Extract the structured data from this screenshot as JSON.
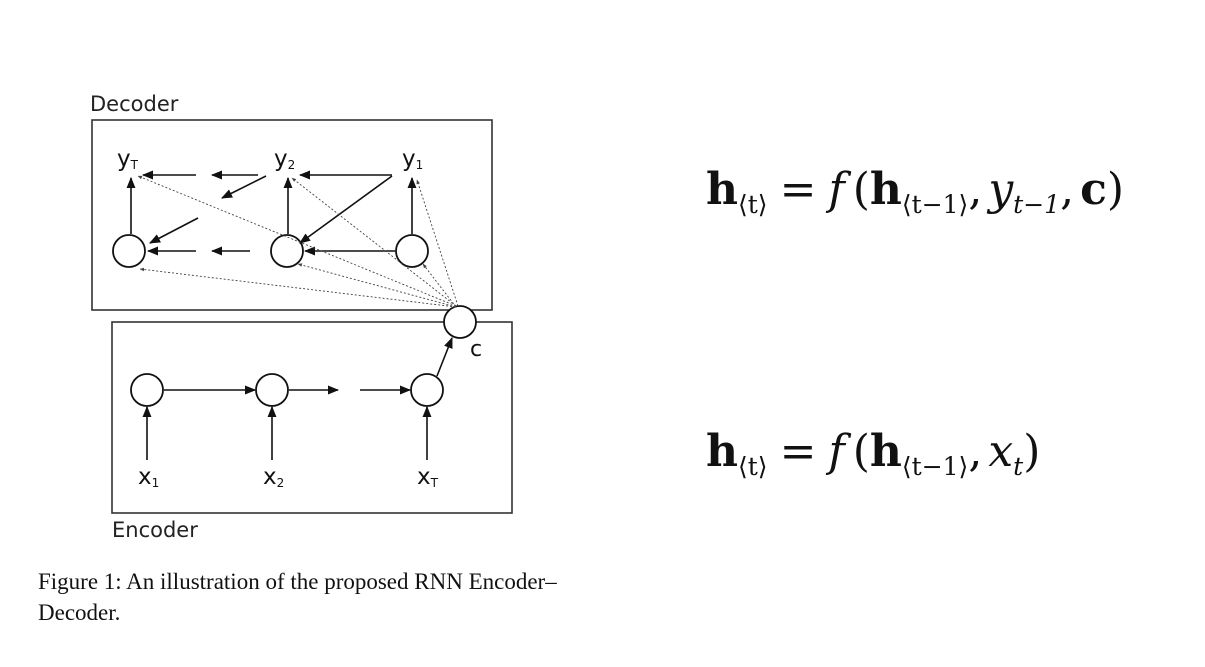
{
  "decoder": {
    "label": "Decoder",
    "outputs": {
      "yT": {
        "base": "y",
        "sub": "T"
      },
      "y2": {
        "base": "y",
        "sub": "2"
      },
      "y1": {
        "base": "y",
        "sub": "1"
      }
    }
  },
  "encoder": {
    "label": "Encoder",
    "inputs": {
      "x1": {
        "base": "x",
        "sub": "1"
      },
      "x2": {
        "base": "x",
        "sub": "2"
      },
      "xT": {
        "base": "x",
        "sub": "T"
      }
    }
  },
  "context": {
    "label": "c"
  },
  "caption": {
    "text": "Figure 1: An illustration of the proposed RNN Encoder–Decoder."
  },
  "equations": {
    "decoder": {
      "h": "h",
      "h_sub": "⟨t⟩",
      "equals": "=",
      "func": "f",
      "open": "(",
      "h_prev": "h",
      "h_prev_sub": "⟨t−1⟩",
      "comma1": ",",
      "y": "y",
      "y_sub": "t−1",
      "comma2": ",",
      "c": "c",
      "close": ")"
    },
    "encoder": {
      "h": "h",
      "h_sub": "⟨t⟩",
      "equals": "=",
      "func": "f",
      "open": "(",
      "h_prev": "h",
      "h_prev_sub": "⟨t−1⟩",
      "comma1": ",",
      "x": "x",
      "x_sub": "t",
      "close": ")"
    }
  }
}
